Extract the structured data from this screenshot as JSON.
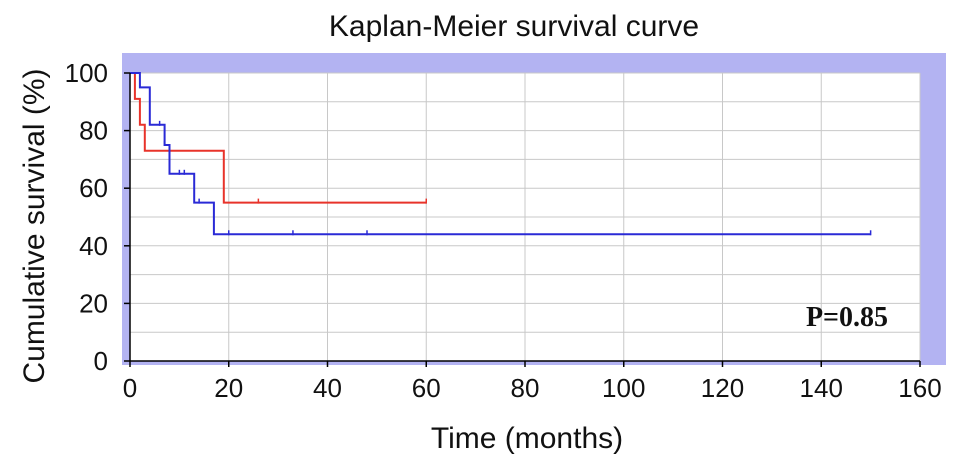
{
  "chart_data": {
    "type": "line",
    "title": "Kaplan-Meier survival curve",
    "xlabel": "Time (months)",
    "ylabel": "Cumulative survival (%)",
    "xlim": [
      0,
      160
    ],
    "ylim": [
      0,
      100
    ],
    "xticks": [
      "0",
      "20",
      "40",
      "60",
      "80",
      "100",
      "120",
      "140",
      "160"
    ],
    "yticks": [
      "0",
      "20",
      "40",
      "60",
      "80",
      "100"
    ],
    "grid": true,
    "annotation": "P=0.85",
    "colors": {
      "frame": "#b3b3f2",
      "plot_bg": "#ffffff",
      "grid": "#c8c8c8"
    },
    "series": [
      {
        "color": "#e8332a",
        "steps": [
          [
            0,
            100
          ],
          [
            1,
            100
          ],
          [
            1,
            91
          ],
          [
            2,
            91
          ],
          [
            2,
            82
          ],
          [
            3,
            82
          ],
          [
            3,
            73
          ],
          [
            19,
            73
          ],
          [
            19,
            55
          ],
          [
            60,
            55
          ]
        ],
        "censor_x": [
          26,
          60
        ]
      },
      {
        "color": "#2a2ad6",
        "steps": [
          [
            0,
            100
          ],
          [
            2,
            100
          ],
          [
            2,
            95
          ],
          [
            4,
            95
          ],
          [
            4,
            82
          ],
          [
            7,
            82
          ],
          [
            7,
            75
          ],
          [
            8,
            75
          ],
          [
            8,
            65
          ],
          [
            13,
            65
          ],
          [
            13,
            55
          ],
          [
            17,
            55
          ],
          [
            17,
            44
          ],
          [
            150,
            44
          ]
        ],
        "censor_x": [
          6,
          7,
          10,
          11,
          14,
          20,
          33,
          48,
          150
        ]
      }
    ]
  }
}
